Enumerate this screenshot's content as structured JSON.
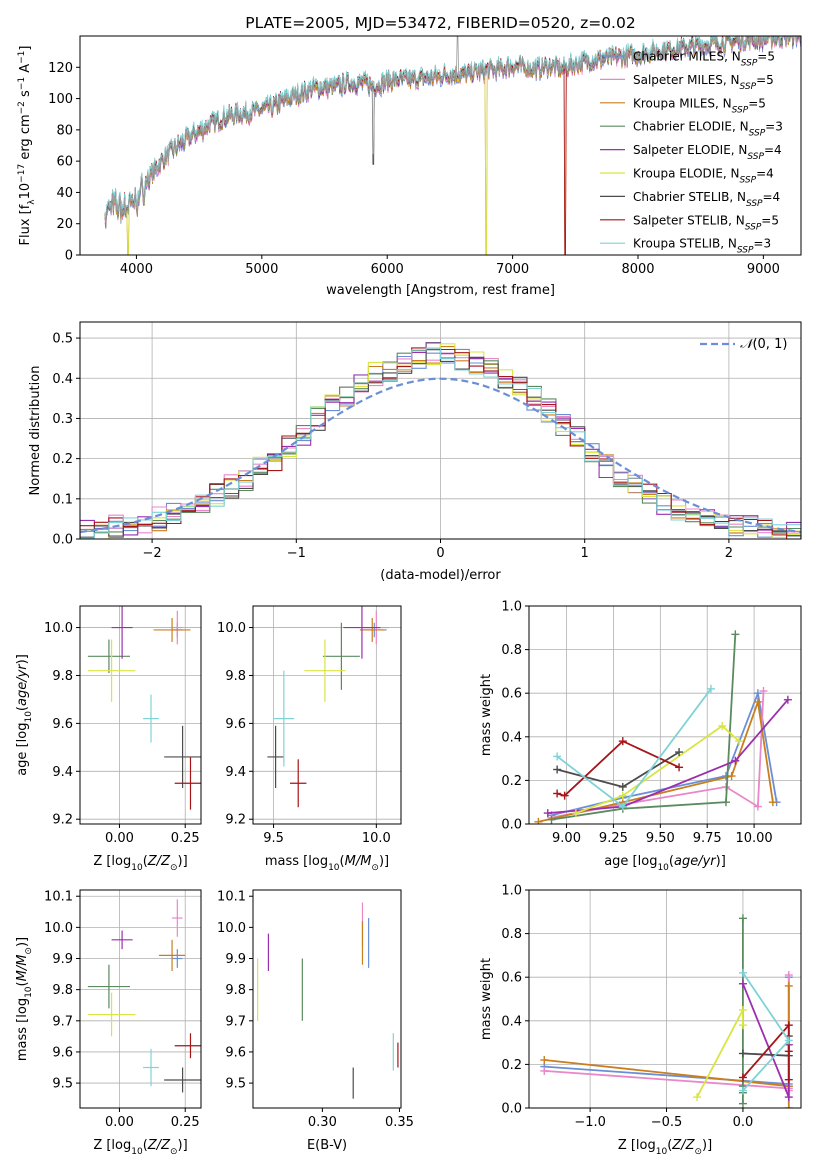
{
  "chart_data": [
    {
      "id": "spectrum",
      "type": "line",
      "title": "PLATE=2005, MJD=53472, FIBERID=0520, z=0.02",
      "xlabel": "wavelength [Angstrom, rest frame]",
      "ylabel": "Flux [f_λ10^−17 erg cm^−2 s^−1 A^−1]",
      "xlim": [
        3550,
        9300
      ],
      "ylim": [
        0,
        140
      ],
      "xticks": [
        4000,
        5000,
        6000,
        7000,
        8000,
        9000
      ],
      "yticks": [
        0,
        20,
        40,
        60,
        80,
        100,
        120
      ],
      "grid": false,
      "legend_position": "top-right",
      "series": [
        {
          "name": "Chabrier MILES, N_SSP=5",
          "color": "#6a8fd6"
        },
        {
          "name": "Salpeter MILES, N_SSP=5",
          "color": "#e987c9"
        },
        {
          "name": "Kroupa MILES, N_SSP=5",
          "color": "#c97f1f"
        },
        {
          "name": "Chabrier ELODIE, N_SSP=3",
          "color": "#5b8a5e"
        },
        {
          "name": "Salpeter ELODIE, N_SSP=4",
          "color": "#9b2fae"
        },
        {
          "name": "Kroupa ELODIE, N_SSP=4",
          "color": "#d9e542"
        },
        {
          "name": "Chabrier STELIB, N_SSP=4",
          "color": "#4c4c4c"
        },
        {
          "name": "Salpeter STELIB, N_SSP=5",
          "color": "#a5151a"
        },
        {
          "name": "Kroupa STELIB, N_SSP=3",
          "color": "#7fd3d6"
        }
      ],
      "data_envelope": {
        "x": [
          3750,
          3800,
          3900,
          4000,
          4100,
          4200,
          4300,
          4400,
          4500,
          4600,
          4700,
          4800,
          4900,
          5000,
          5100,
          5200,
          5300,
          5400,
          5500,
          5600,
          5700,
          5800,
          5900,
          6000,
          6100,
          6200,
          6300,
          6400,
          6500,
          6600,
          6700,
          6800,
          6900,
          7000,
          7100,
          7200,
          7300,
          7400,
          7500,
          7600,
          7700,
          7800,
          7900,
          8000,
          8200,
          8400,
          8600,
          8800,
          9000,
          9200
        ],
        "y": [
          24,
          32,
          30,
          35,
          49,
          60,
          68,
          74,
          79,
          84,
          88,
          90,
          91,
          93,
          95,
          100,
          103,
          106,
          107,
          108,
          110,
          110,
          108,
          111,
          112,
          112,
          113,
          114,
          116,
          115,
          117,
          118,
          119,
          121,
          120,
          119,
          121,
          119,
          122,
          124,
          125,
          126,
          127,
          128,
          131,
          133,
          135,
          137,
          138,
          140
        ]
      },
      "annotations": {
        "absorption_dips": [
          {
            "x": 3935,
            "y": 0
          },
          {
            "x": 5890,
            "y": 58
          },
          {
            "x": 6790,
            "y": 0
          },
          {
            "x": 7420,
            "y": 0
          },
          {
            "x": 6560,
            "y": 140
          }
        ]
      }
    },
    {
      "id": "residuals",
      "type": "histogram",
      "xlabel": "(data-model)/error",
      "ylabel": "Normed distribution",
      "xlim": [
        -2.5,
        2.5
      ],
      "ylim": [
        0,
        0.54
      ],
      "xticks": [
        -2,
        -1,
        0,
        1,
        2
      ],
      "yticks": [
        0.0,
        0.1,
        0.2,
        0.3,
        0.4,
        0.5
      ],
      "grid": true,
      "legend": [
        {
          "label": "𝒩(0,1)",
          "style": "dashed",
          "color": "#6a8fd6"
        }
      ],
      "bin_edges": [
        -2.5,
        -2.4,
        -2.3,
        -2.2,
        -2.1,
        -2.0,
        -1.9,
        -1.8,
        -1.7,
        -1.6,
        -1.5,
        -1.4,
        -1.3,
        -1.2,
        -1.1,
        -1.0,
        -0.9,
        -0.8,
        -0.7,
        -0.6,
        -0.5,
        -0.4,
        -0.3,
        -0.2,
        -0.1,
        0.0,
        0.1,
        0.2,
        0.3,
        0.4,
        0.5,
        0.6,
        0.7,
        0.8,
        0.9,
        1.0,
        1.1,
        1.2,
        1.3,
        1.4,
        1.5,
        1.6,
        1.7,
        1.8,
        1.9,
        2.0,
        2.1,
        2.2,
        2.3,
        2.4,
        2.5
      ],
      "base_density": [
        0.02,
        0.025,
        0.03,
        0.035,
        0.04,
        0.05,
        0.06,
        0.075,
        0.09,
        0.11,
        0.13,
        0.15,
        0.175,
        0.2,
        0.23,
        0.26,
        0.3,
        0.33,
        0.36,
        0.39,
        0.41,
        0.42,
        0.44,
        0.45,
        0.46,
        0.46,
        0.45,
        0.44,
        0.42,
        0.4,
        0.38,
        0.35,
        0.32,
        0.28,
        0.25,
        0.22,
        0.18,
        0.15,
        0.13,
        0.11,
        0.09,
        0.075,
        0.06,
        0.05,
        0.04,
        0.035,
        0.03,
        0.025,
        0.02,
        0.018
      ]
    },
    {
      "id": "z-age",
      "type": "scatter",
      "xlabel": "Z [log10(Z/Z☉)]",
      "ylabel": "age [log10(age/yr)]",
      "xlim": [
        -0.15,
        0.31
      ],
      "ylim": [
        9.18,
        10.09
      ],
      "xticks": [
        0.0,
        0.25
      ],
      "yticks": [
        9.2,
        9.4,
        9.6,
        9.8,
        10.0
      ],
      "grid": true,
      "points": [
        {
          "series": 0,
          "x": 0.22,
          "y": 9.99,
          "xerr": 0.02,
          "yerr": 0.03
        },
        {
          "series": 1,
          "x": 0.22,
          "y": 10.0,
          "xerr": 0.02,
          "yerr": 0.07
        },
        {
          "series": 2,
          "x": 0.2,
          "y": 9.99,
          "xerr": 0.07,
          "yerr": 0.05
        },
        {
          "series": 3,
          "x": -0.04,
          "y": 9.88,
          "xerr": 0.08,
          "yerr": 0.07
        },
        {
          "series": 4,
          "x": 0.01,
          "y": 10.0,
          "xerr": 0.04,
          "yerr": 0.13
        },
        {
          "series": 5,
          "x": -0.03,
          "y": 9.82,
          "xerr": 0.09,
          "yerr": 0.13
        },
        {
          "series": 6,
          "x": 0.24,
          "y": 9.46,
          "xerr": 0.07,
          "yerr": 0.13
        },
        {
          "series": 7,
          "x": 0.27,
          "y": 9.35,
          "xerr": 0.06,
          "yerr": 0.11
        },
        {
          "series": 8,
          "x": 0.12,
          "y": 9.62,
          "xerr": 0.03,
          "yerr": 0.1
        }
      ]
    },
    {
      "id": "mass-age",
      "type": "scatter",
      "xlabel": "mass [log10(M/M☉)]",
      "xlim": [
        9.4,
        10.12
      ],
      "ylim": [
        9.18,
        10.09
      ],
      "xticks": [
        9.5,
        10.0
      ],
      "yticks": [
        9.2,
        9.4,
        9.6,
        9.8,
        10.0
      ],
      "grid": true,
      "points": [
        {
          "series": 0,
          "x": 9.99,
          "y": 9.99,
          "xerr": 0.06,
          "yerr": 0.03
        },
        {
          "series": 1,
          "x": 10.0,
          "y": 10.0,
          "xerr": 0.06,
          "yerr": 0.07
        },
        {
          "series": 2,
          "x": 9.98,
          "y": 9.99,
          "xerr": 0.06,
          "yerr": 0.05
        },
        {
          "series": 3,
          "x": 9.83,
          "y": 9.88,
          "xerr": 0.09,
          "yerr": 0.14
        },
        {
          "series": 4,
          "x": 9.93,
          "y": 10.0,
          "xerr": 0.09,
          "yerr": 0.13
        },
        {
          "series": 5,
          "x": 9.75,
          "y": 9.82,
          "xerr": 0.1,
          "yerr": 0.13
        },
        {
          "series": 6,
          "x": 9.51,
          "y": 9.46,
          "xerr": 0.04,
          "yerr": 0.13
        },
        {
          "series": 7,
          "x": 9.62,
          "y": 9.35,
          "xerr": 0.04,
          "yerr": 0.1
        },
        {
          "series": 8,
          "x": 9.55,
          "y": 9.62,
          "xerr": 0.05,
          "yerr": 0.2
        }
      ]
    },
    {
      "id": "age-weight",
      "type": "line",
      "xlabel": "age [log10(age/yr)]",
      "ylabel": "mass weight",
      "xlim": [
        8.8,
        10.25
      ],
      "ylim": [
        0,
        1.0
      ],
      "xticks": [
        9.0,
        9.25,
        9.5,
        9.75,
        10.0
      ],
      "xtick_labels": [
        "9.00",
        "9.25",
        "9.50",
        "9.75",
        "10.00"
      ],
      "yticks": [
        0.0,
        0.2,
        0.4,
        0.6,
        0.8,
        1.0
      ],
      "grid": true,
      "series": [
        {
          "series": 0,
          "x": [
            8.92,
            9.3,
            9.85,
            10.02,
            10.12
          ],
          "y": [
            0.04,
            0.12,
            0.22,
            0.6,
            0.1
          ]
        },
        {
          "series": 1,
          "x": [
            8.92,
            9.3,
            9.85,
            10.02,
            10.05
          ],
          "y": [
            0.03,
            0.09,
            0.17,
            0.08,
            0.61
          ]
        },
        {
          "series": 2,
          "x": [
            8.85,
            9.3,
            9.88,
            10.02,
            10.1
          ],
          "y": [
            0.01,
            0.1,
            0.22,
            0.56,
            0.1
          ]
        },
        {
          "series": 3,
          "x": [
            8.92,
            9.3,
            9.85,
            9.9
          ],
          "y": [
            0.02,
            0.07,
            0.1,
            0.87
          ]
        },
        {
          "series": 4,
          "x": [
            8.9,
            9.3,
            9.9,
            10.18
          ],
          "y": [
            0.05,
            0.08,
            0.29,
            0.57
          ]
        },
        {
          "series": 5,
          "x": [
            9.05,
            9.3,
            9.83,
            9.92
          ],
          "y": [
            0.05,
            0.13,
            0.45,
            0.38
          ]
        },
        {
          "series": 6,
          "x": [
            8.95,
            9.3,
            9.6
          ],
          "y": [
            0.25,
            0.17,
            0.33
          ]
        },
        {
          "series": 7,
          "x": [
            8.95,
            8.99,
            9.3,
            9.6
          ],
          "y": [
            0.14,
            0.13,
            0.38,
            0.26
          ]
        },
        {
          "series": 8,
          "x": [
            8.95,
            9.3,
            9.77
          ],
          "y": [
            0.31,
            0.08,
            0.62
          ]
        }
      ]
    },
    {
      "id": "z-mass",
      "type": "scatter",
      "xlabel": "Z [log10(Z/Z☉)]",
      "ylabel": "mass [log10(M/M☉)]",
      "xlim": [
        -0.15,
        0.31
      ],
      "ylim": [
        9.42,
        10.12
      ],
      "xticks": [
        0.0,
        0.25
      ],
      "yticks": [
        9.5,
        9.6,
        9.7,
        9.8,
        9.9,
        10.0,
        10.1
      ],
      "grid": true,
      "points": [
        {
          "series": 0,
          "x": 0.22,
          "y": 9.9,
          "xerr": 0.02,
          "yerr": 0.03
        },
        {
          "series": 1,
          "x": 0.22,
          "y": 10.03,
          "xerr": 0.02,
          "yerr": 0.06
        },
        {
          "series": 2,
          "x": 0.2,
          "y": 9.91,
          "xerr": 0.05,
          "yerr": 0.05
        },
        {
          "series": 3,
          "x": -0.04,
          "y": 9.81,
          "xerr": 0.08,
          "yerr": 0.07
        },
        {
          "series": 4,
          "x": 0.01,
          "y": 9.96,
          "xerr": 0.04,
          "yerr": 0.03
        },
        {
          "series": 5,
          "x": -0.03,
          "y": 9.72,
          "xerr": 0.09,
          "yerr": 0.07
        },
        {
          "series": 6,
          "x": 0.24,
          "y": 9.51,
          "xerr": 0.07,
          "yerr": 0.04
        },
        {
          "series": 7,
          "x": 0.27,
          "y": 9.62,
          "xerr": 0.06,
          "yerr": 0.04
        },
        {
          "series": 8,
          "x": 0.12,
          "y": 9.55,
          "xerr": 0.03,
          "yerr": 0.06
        }
      ]
    },
    {
      "id": "ebv-mass",
      "type": "scatter",
      "xlabel": "E(B-V)",
      "xlim": [
        0.255,
        0.351
      ],
      "ylim": [
        9.42,
        10.12
      ],
      "xticks": [
        0.3,
        0.35
      ],
      "yticks": [
        9.5,
        9.6,
        9.7,
        9.8,
        9.9,
        10.0,
        10.1
      ],
      "grid": false,
      "points": [
        {
          "series": 0,
          "x": 0.33,
          "y": 9.95,
          "yerr": 0.08
        },
        {
          "series": 1,
          "x": 0.326,
          "y": 10.01,
          "yerr": 0.07
        },
        {
          "series": 2,
          "x": 0.326,
          "y": 9.95,
          "yerr": 0.07
        },
        {
          "series": 3,
          "x": 0.287,
          "y": 9.8,
          "yerr": 0.1
        },
        {
          "series": 4,
          "x": 0.265,
          "y": 9.92,
          "yerr": 0.06
        },
        {
          "series": 5,
          "x": 0.258,
          "y": 9.8,
          "yerr": 0.1
        },
        {
          "series": 6,
          "x": 0.32,
          "y": 9.5,
          "yerr": 0.05
        },
        {
          "series": 7,
          "x": 0.349,
          "y": 9.59,
          "yerr": 0.04
        },
        {
          "series": 8,
          "x": 0.346,
          "y": 9.6,
          "yerr": 0.06
        }
      ]
    },
    {
      "id": "z-weight",
      "type": "line",
      "xlabel": "Z [log10(Z/Z☉)]",
      "ylabel": "mass weight",
      "xlim": [
        -1.4,
        0.38
      ],
      "ylim": [
        0,
        1.0
      ],
      "xticks": [
        -1.0,
        -0.5,
        0.0
      ],
      "xtick_labels": [
        "−1.0",
        "−0.5",
        "0.0"
      ],
      "yticks": [
        0.0,
        0.2,
        0.4,
        0.6,
        0.8,
        1.0
      ],
      "grid": true,
      "series": [
        {
          "series": 0,
          "x": [
            -1.3,
            0.3,
            0.3,
            0.3
          ],
          "y": [
            0.19,
            0.11,
            0.6,
            0.1
          ]
        },
        {
          "series": 1,
          "x": [
            -1.3,
            0.3,
            0.3,
            0.3
          ],
          "y": [
            0.17,
            0.09,
            0.61,
            0.08
          ]
        },
        {
          "series": 2,
          "x": [
            -1.3,
            0.3,
            0.3,
            0.3
          ],
          "y": [
            0.22,
            0.1,
            0.56,
            0.0
          ]
        },
        {
          "series": 3,
          "x": [
            0.0,
            0.0,
            0.0,
            0.0
          ],
          "y": [
            0.02,
            0.1,
            0.87,
            0.07
          ]
        },
        {
          "series": 4,
          "x": [
            0.0,
            0.3,
            0.3
          ],
          "y": [
            0.57,
            0.05,
            0.29
          ]
        },
        {
          "series": 5,
          "x": [
            -0.3,
            0.0,
            0.0
          ],
          "y": [
            0.05,
            0.45,
            0.38
          ]
        },
        {
          "series": 6,
          "x": [
            0.0,
            0.3,
            0.3
          ],
          "y": [
            0.25,
            0.24,
            0.33
          ]
        },
        {
          "series": 7,
          "x": [
            0.0,
            0.3,
            0.3,
            0.3
          ],
          "y": [
            0.14,
            0.38,
            0.26,
            0.13
          ]
        },
        {
          "series": 8,
          "x": [
            0.0,
            0.3,
            0.0
          ],
          "y": [
            0.08,
            0.31,
            0.62
          ]
        }
      ]
    }
  ]
}
